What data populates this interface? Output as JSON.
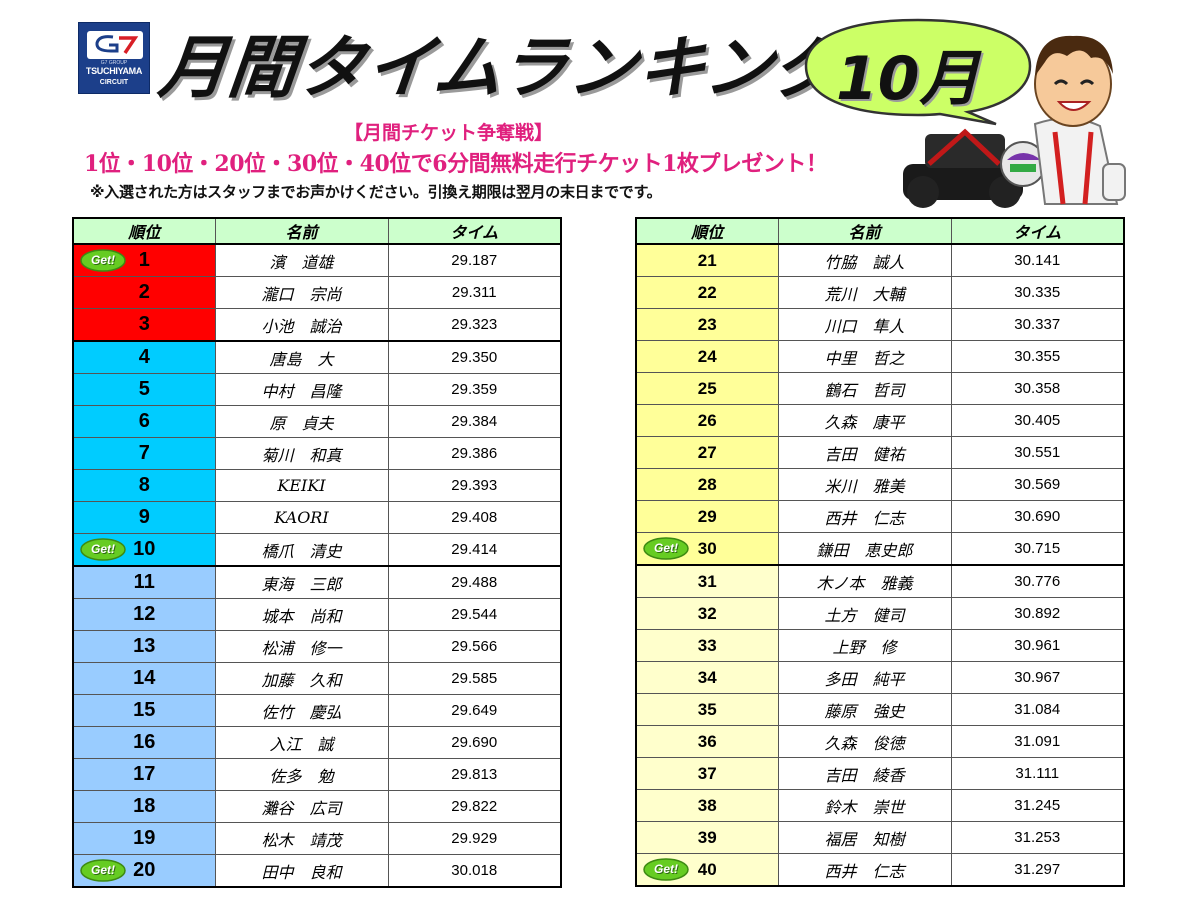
{
  "header": {
    "logo_line1": "TSUCHIYAMA",
    "logo_line2": "CIRCUIT",
    "logo_group": "G7 GROUP",
    "title": "月間タイムランキング",
    "month": "10月"
  },
  "notice": {
    "campaign": "【月間チケット争奪戦】",
    "prize": "1位・10位・20位・30位・40位で6分間無料走行チケット1枚プレゼント！",
    "note": "※入選された方はスタッフまでお声かけください。引換え期限は翌月の末日までです。"
  },
  "table": {
    "headers": [
      "順位",
      "名前",
      "タイム"
    ],
    "badge_label": "Get!",
    "colors": {
      "top3": "#ff0000",
      "top10": "#00ccff",
      "top20": "#99ccff",
      "top30": "#ffff99",
      "top40": "#ffffcc",
      "header": "#ccffcc",
      "badge": "#66cc22"
    },
    "left": [
      {
        "rank": "1",
        "name": "濱　道雄",
        "time": "29.187",
        "badge": true
      },
      {
        "rank": "2",
        "name": "瀧口　宗尚",
        "time": "29.311",
        "badge": false
      },
      {
        "rank": "3",
        "name": "小池　誠治",
        "time": "29.323",
        "badge": false
      },
      {
        "rank": "4",
        "name": "唐島　大",
        "time": "29.350",
        "badge": false
      },
      {
        "rank": "5",
        "name": "中村　昌隆",
        "time": "29.359",
        "badge": false
      },
      {
        "rank": "6",
        "name": "原　貞夫",
        "time": "29.384",
        "badge": false
      },
      {
        "rank": "7",
        "name": "菊川　和真",
        "time": "29.386",
        "badge": false
      },
      {
        "rank": "8",
        "name": "KEIKI",
        "time": "29.393",
        "badge": false
      },
      {
        "rank": "9",
        "name": "KAORI",
        "time": "29.408",
        "badge": false
      },
      {
        "rank": "10",
        "name": "橋爪　清史",
        "time": "29.414",
        "badge": true
      },
      {
        "rank": "11",
        "name": "東海　三郎",
        "time": "29.488",
        "badge": false
      },
      {
        "rank": "12",
        "name": "城本　尚和",
        "time": "29.544",
        "badge": false
      },
      {
        "rank": "13",
        "name": "松浦　修一",
        "time": "29.566",
        "badge": false
      },
      {
        "rank": "14",
        "name": "加藤　久和",
        "time": "29.585",
        "badge": false
      },
      {
        "rank": "15",
        "name": "佐竹　慶弘",
        "time": "29.649",
        "badge": false
      },
      {
        "rank": "16",
        "name": "入江　誠",
        "time": "29.690",
        "badge": false
      },
      {
        "rank": "17",
        "name": "佐多　勉",
        "time": "29.813",
        "badge": false
      },
      {
        "rank": "18",
        "name": "灘谷　広司",
        "time": "29.822",
        "badge": false
      },
      {
        "rank": "19",
        "name": "松木　靖茂",
        "time": "29.929",
        "badge": false
      },
      {
        "rank": "20",
        "name": "田中　良和",
        "time": "30.018",
        "badge": true
      }
    ],
    "right": [
      {
        "rank": "21",
        "name": "竹脇　誠人",
        "time": "30.141",
        "badge": false
      },
      {
        "rank": "22",
        "name": "荒川　大輔",
        "time": "30.335",
        "badge": false
      },
      {
        "rank": "23",
        "name": "川口　隼人",
        "time": "30.337",
        "badge": false
      },
      {
        "rank": "24",
        "name": "中里　哲之",
        "time": "30.355",
        "badge": false
      },
      {
        "rank": "25",
        "name": "鶴石　哲司",
        "time": "30.358",
        "badge": false
      },
      {
        "rank": "26",
        "name": "久森　康平",
        "time": "30.405",
        "badge": false
      },
      {
        "rank": "27",
        "name": "吉田　健祐",
        "time": "30.551",
        "badge": false
      },
      {
        "rank": "28",
        "name": "米川　雅美",
        "time": "30.569",
        "badge": false
      },
      {
        "rank": "29",
        "name": "西井　仁志",
        "time": "30.690",
        "badge": false
      },
      {
        "rank": "30",
        "name": "鎌田　恵史郎",
        "time": "30.715",
        "badge": true
      },
      {
        "rank": "31",
        "name": "木ノ本　雅義",
        "time": "30.776",
        "badge": false
      },
      {
        "rank": "32",
        "name": "土方　健司",
        "time": "30.892",
        "badge": false
      },
      {
        "rank": "33",
        "name": "上野　修",
        "time": "30.961",
        "badge": false
      },
      {
        "rank": "34",
        "name": "多田　純平",
        "time": "30.967",
        "badge": false
      },
      {
        "rank": "35",
        "name": "藤原　強史",
        "time": "31.084",
        "badge": false
      },
      {
        "rank": "36",
        "name": "久森　俊徳",
        "time": "31.091",
        "badge": false
      },
      {
        "rank": "37",
        "name": "吉田　綾香",
        "time": "31.111",
        "badge": false
      },
      {
        "rank": "38",
        "name": "鈴木　崇世",
        "time": "31.245",
        "badge": false
      },
      {
        "rank": "39",
        "name": "福居　知樹",
        "time": "31.253",
        "badge": false
      },
      {
        "rank": "40",
        "name": "西井　仁志",
        "time": "31.297",
        "badge": true
      }
    ]
  }
}
